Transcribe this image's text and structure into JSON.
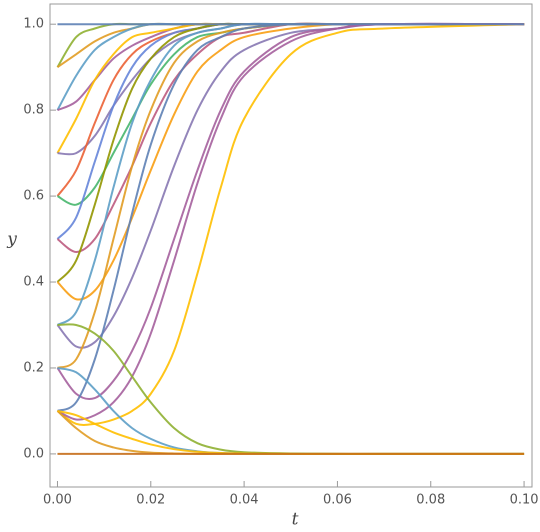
{
  "chart_data": {
    "type": "line",
    "x_label": "t",
    "y_label": "y",
    "x": [
      0,
      0.004,
      0.008,
      0.012,
      0.016,
      0.02,
      0.025,
      0.03,
      0.035,
      0.04,
      0.05,
      0.06,
      0.07,
      0.1
    ],
    "xlim": [
      -0.0016,
      0.1017
    ],
    "ylim": [
      -0.077,
      1.047
    ],
    "xticks": [
      {
        "value": 0,
        "label": "0.00"
      },
      {
        "value": 0.02,
        "label": "0.02"
      },
      {
        "value": 0.04,
        "label": "0.04"
      },
      {
        "value": 0.06,
        "label": "0.06"
      },
      {
        "value": 0.08,
        "label": "0.08"
      },
      {
        "value": 0.1,
        "label": "0.10"
      }
    ],
    "yticks": [
      {
        "value": 0,
        "label": "0.0"
      },
      0.2,
      0.4,
      0.6,
      0.8,
      {
        "value": 1,
        "label": "1.0"
      }
    ],
    "grid": false,
    "series": [
      {
        "color": "#5e81b5",
        "values": [
          1,
          1,
          1,
          1,
          1,
          1,
          1,
          1,
          1,
          1,
          1,
          1,
          1,
          1
        ]
      },
      {
        "color": "#c56e1a",
        "values": [
          0,
          0,
          0,
          0,
          0,
          0,
          0,
          0,
          0,
          0,
          0,
          0,
          0,
          0
        ]
      },
      {
        "color": "#8fb032",
        "values": [
          0.9,
          0.97,
          0.99,
          1,
          1,
          1,
          1,
          1,
          1,
          1,
          1,
          1,
          1,
          1
        ]
      },
      {
        "color": "#e19c24",
        "values": [
          0.9,
          0.93,
          0.96,
          0.98,
          0.99,
          1,
          1,
          1,
          1,
          1,
          1,
          1,
          1,
          1
        ]
      },
      {
        "color": "#5d9ec7",
        "values": [
          0.8,
          0.88,
          0.94,
          0.97,
          0.99,
          1,
          1,
          1,
          1,
          1,
          1,
          1,
          1,
          1
        ]
      },
      {
        "color": "#a5609d",
        "values": [
          0.8,
          0.82,
          0.87,
          0.92,
          0.95,
          0.97,
          0.99,
          1,
          1,
          1,
          1,
          1,
          1,
          1
        ]
      },
      {
        "color": "#ffbf00",
        "values": [
          0.7,
          0.78,
          0.87,
          0.93,
          0.97,
          0.98,
          0.99,
          1,
          1,
          1,
          1,
          1,
          1,
          1
        ]
      },
      {
        "color": "#8778b3",
        "values": [
          0.7,
          0.7,
          0.74,
          0.81,
          0.87,
          0.92,
          0.96,
          0.98,
          0.99,
          1,
          1,
          1,
          1,
          1
        ]
      },
      {
        "color": "#eb6235",
        "values": [
          0.6,
          0.66,
          0.77,
          0.87,
          0.93,
          0.96,
          0.98,
          0.99,
          1,
          1,
          1,
          1,
          1,
          1
        ]
      },
      {
        "color": "#47b66d",
        "values": [
          0.6,
          0.58,
          0.62,
          0.7,
          0.78,
          0.86,
          0.93,
          0.97,
          0.98,
          0.99,
          1,
          1,
          1,
          1
        ]
      },
      {
        "color": "#6685d9",
        "values": [
          0.5,
          0.55,
          0.68,
          0.81,
          0.9,
          0.95,
          0.98,
          0.99,
          1,
          1,
          1,
          1,
          1,
          1
        ]
      },
      {
        "color": "#bc5b80",
        "values": [
          0.5,
          0.47,
          0.5,
          0.58,
          0.67,
          0.77,
          0.87,
          0.93,
          0.97,
          0.98,
          1,
          1,
          1,
          1
        ]
      },
      {
        "color": "#929600",
        "values": [
          0.4,
          0.45,
          0.58,
          0.73,
          0.85,
          0.92,
          0.97,
          0.99,
          1,
          1,
          1,
          1,
          1,
          1
        ]
      },
      {
        "color": "#f89f13",
        "values": [
          0.4,
          0.36,
          0.38,
          0.45,
          0.55,
          0.66,
          0.79,
          0.89,
          0.94,
          0.97,
          0.99,
          1,
          1,
          1
        ]
      },
      {
        "color": "#5d9ec7",
        "values": [
          0.3,
          0.33,
          0.45,
          0.62,
          0.77,
          0.87,
          0.95,
          0.98,
          0.99,
          1,
          1,
          1,
          1,
          1
        ]
      },
      {
        "color": "#8778b3",
        "values": [
          0.3,
          0.25,
          0.26,
          0.32,
          0.41,
          0.52,
          0.67,
          0.8,
          0.89,
          0.94,
          0.98,
          0.99,
          1,
          1
        ]
      },
      {
        "color": "#e19c24",
        "values": [
          0.2,
          0.22,
          0.33,
          0.5,
          0.67,
          0.8,
          0.91,
          0.96,
          0.98,
          0.99,
          1,
          1,
          1,
          1
        ]
      },
      {
        "color": "#a5609d",
        "values": [
          0.2,
          0.14,
          0.13,
          0.17,
          0.24,
          0.34,
          0.5,
          0.66,
          0.8,
          0.89,
          0.97,
          0.99,
          1,
          1
        ]
      },
      {
        "color": "#5e81b5",
        "values": [
          0.1,
          0.12,
          0.22,
          0.38,
          0.56,
          0.72,
          0.86,
          0.94,
          0.97,
          0.99,
          1,
          1,
          1,
          1
        ]
      },
      {
        "color": "#ffbf00",
        "values": [
          0.1,
          0.07,
          0.07,
          0.08,
          0.1,
          0.14,
          0.24,
          0.42,
          0.62,
          0.78,
          0.93,
          0.98,
          0.99,
          1
        ]
      },
      {
        "color": "#a5609d",
        "values": [
          0.1,
          0.08,
          0.09,
          0.12,
          0.18,
          0.28,
          0.45,
          0.63,
          0.78,
          0.88,
          0.96,
          0.99,
          1,
          1
        ]
      },
      {
        "color": "#e19c24",
        "values": [
          0.1,
          0.06,
          0.03,
          0.015,
          0.007,
          0.003,
          0.001,
          0,
          0,
          0,
          0,
          0,
          0,
          0
        ]
      },
      {
        "color": "#5d9ec7",
        "values": [
          0.2,
          0.19,
          0.15,
          0.1,
          0.06,
          0.035,
          0.015,
          0.006,
          0.002,
          0.001,
          0,
          0,
          0,
          0
        ]
      },
      {
        "color": "#8fb032",
        "values": [
          0.3,
          0.3,
          0.28,
          0.24,
          0.18,
          0.12,
          0.06,
          0.025,
          0.01,
          0.004,
          0.001,
          0,
          0,
          0
        ]
      },
      {
        "color": "#ffbf00",
        "values": [
          0.1,
          0.09,
          0.07,
          0.05,
          0.035,
          0.022,
          0.011,
          0.005,
          0.002,
          0.001,
          0,
          0,
          0,
          0
        ]
      }
    ]
  }
}
